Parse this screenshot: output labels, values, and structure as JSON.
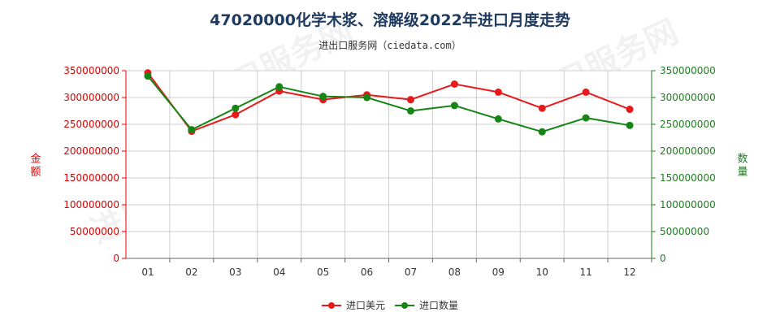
{
  "title": "47020000化学木浆、溶解级2022年进口月度走势",
  "subtitle": "进出口服务网（ciedata.com）",
  "watermark": "进出口服务网",
  "chart_data": {
    "type": "line",
    "title": "47020000化学木浆、溶解级2022年进口月度走势",
    "categories": [
      "01",
      "02",
      "03",
      "04",
      "05",
      "06",
      "07",
      "08",
      "09",
      "10",
      "11",
      "12"
    ],
    "y_left": {
      "label": "金额",
      "min": 0,
      "max": 350000000,
      "ticks": [
        "0",
        "50000000",
        "100000000",
        "150000000",
        "200000000",
        "250000000",
        "300000000",
        "350000000"
      ],
      "tick_values": [
        0,
        50000000,
        100000000,
        150000000,
        200000000,
        250000000,
        300000000,
        350000000
      ]
    },
    "y_right": {
      "label": "数量",
      "min": 0,
      "max": 350000000,
      "ticks": [
        "0",
        "50000000",
        "100000000",
        "150000000",
        "200000000",
        "250000000",
        "300000000",
        "350000000"
      ],
      "tick_values": [
        0,
        50000000,
        100000000,
        150000000,
        200000000,
        250000000,
        300000000,
        350000000
      ]
    },
    "grid": true,
    "legend_position": "bottom-center",
    "series": [
      {
        "name": "进口美元",
        "color": "#e8191b",
        "axis": "left",
        "values": [
          346000000,
          237000000,
          268000000,
          312000000,
          296000000,
          305000000,
          296000000,
          325000000,
          310000000,
          280000000,
          310000000,
          278000000
        ]
      },
      {
        "name": "进口数量",
        "color": "#168516",
        "axis": "right",
        "values": [
          340000000,
          240000000,
          280000000,
          320000000,
          302000000,
          300000000,
          275000000,
          285000000,
          260000000,
          236000000,
          262000000,
          248000000
        ]
      }
    ]
  }
}
